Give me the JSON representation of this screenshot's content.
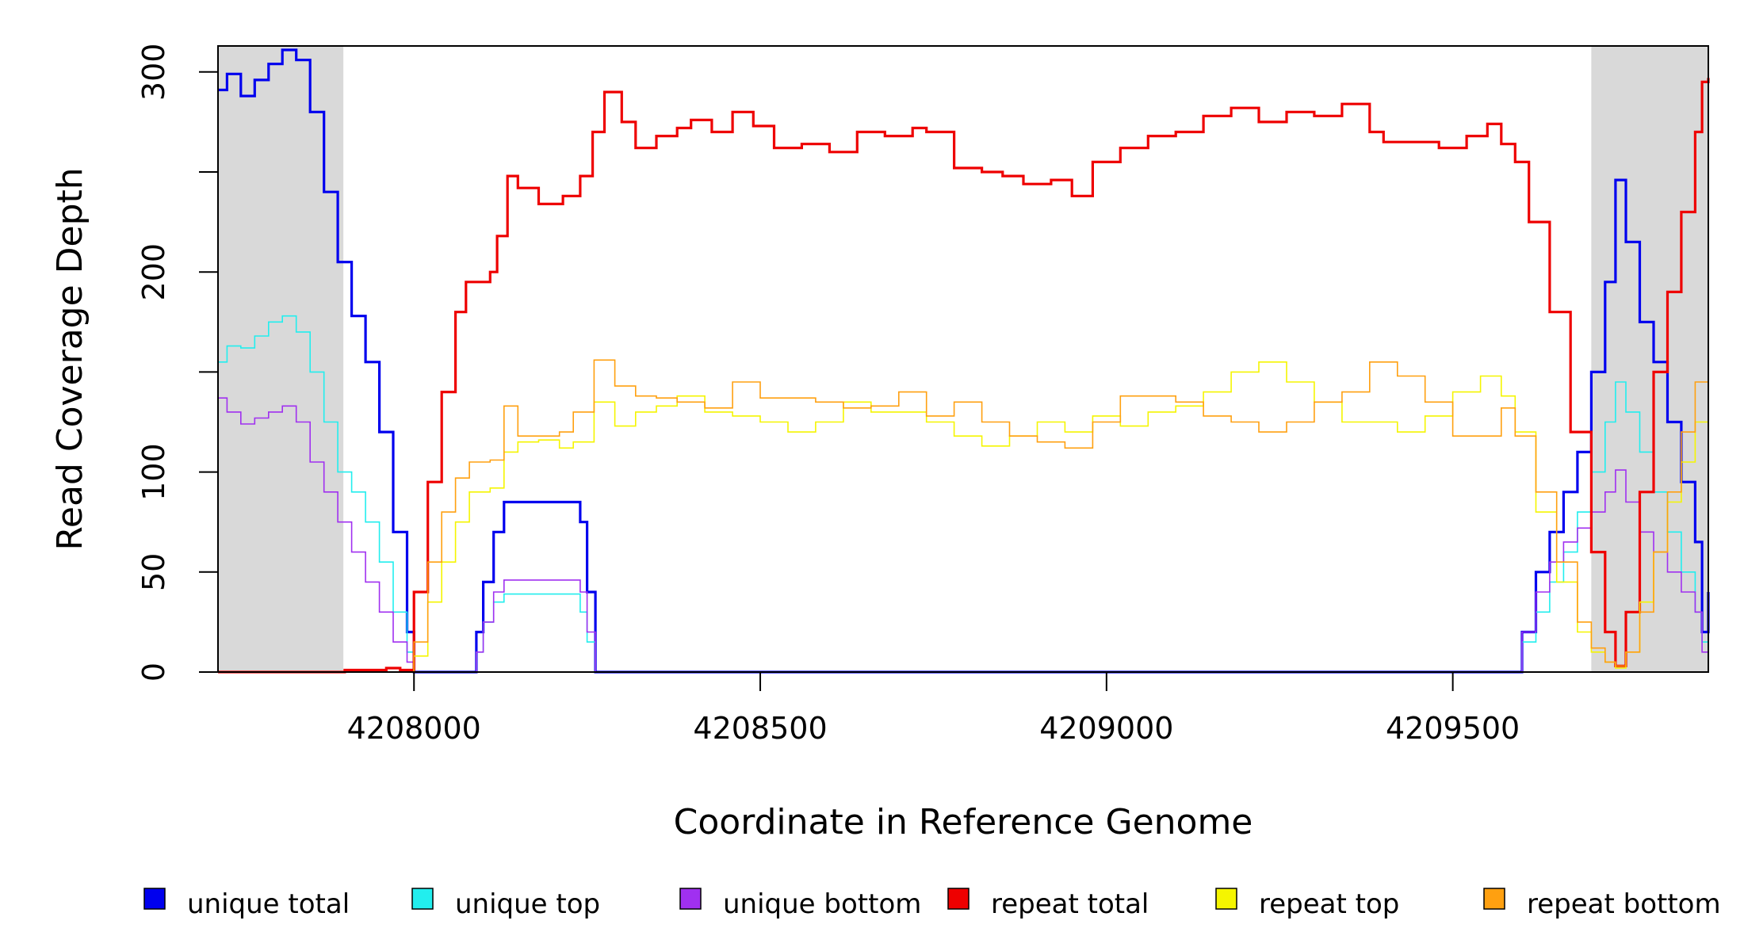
{
  "chart_data": {
    "type": "line",
    "title": "",
    "xlabel": "Coordinate in Reference Genome",
    "ylabel": "Read Coverage Depth",
    "xlim": [
      4207717,
      4209869
    ],
    "ylim": [
      0,
      313
    ],
    "x_ticks": [
      {
        "value": 4208000,
        "label": "4208000"
      },
      {
        "value": 4208500,
        "label": "4208500"
      },
      {
        "value": 4209000,
        "label": "4209000"
      },
      {
        "value": 4209500,
        "label": "4209500"
      }
    ],
    "y_ticks": [
      {
        "value": 0,
        "label": "0"
      },
      {
        "value": 50,
        "label": "50"
      },
      {
        "value": 100,
        "label": "100"
      },
      {
        "value": 150,
        "label": ""
      },
      {
        "value": 200,
        "label": "200"
      },
      {
        "value": 250,
        "label": ""
      },
      {
        "value": 300,
        "label": "300"
      }
    ],
    "grid": false,
    "legend_position": "bottom",
    "shaded_regions": [
      {
        "x": [
          4207717,
          4207898
        ],
        "color": "#d9d9d9"
      },
      {
        "x": [
          4209700,
          4209869
        ],
        "color": "#d9d9d9"
      }
    ],
    "series": [
      {
        "name": "unique total",
        "color": "#0000ee",
        "width": 3.2,
        "x": [
          4207717,
          4207730,
          4207750,
          4207770,
          4207790,
          4207810,
          4207830,
          4207850,
          4207870,
          4207890,
          4207910,
          4207930,
          4207950,
          4207970,
          4207990,
          4208000,
          4208080,
          4208090,
          4208100,
          4208115,
          4208130,
          4208160,
          4208200,
          4208230,
          4208240,
          4208250,
          4208262,
          4208280,
          4208500,
          4209000,
          4209500,
          4209590,
          4209600,
          4209620,
          4209640,
          4209660,
          4209680,
          4209700,
          4209720,
          4209735,
          4209750,
          4209770,
          4209790,
          4209810,
          4209830,
          4209850,
          4209860,
          4209869
        ],
        "y": [
          291,
          299,
          288,
          296,
          304,
          311,
          306,
          280,
          240,
          205,
          178,
          155,
          120,
          70,
          20,
          0,
          0,
          20,
          45,
          70,
          85,
          85,
          85,
          85,
          75,
          40,
          0,
          0,
          0,
          0,
          0,
          0,
          20,
          50,
          70,
          90,
          110,
          150,
          195,
          246,
          215,
          175,
          155,
          125,
          95,
          65,
          20,
          40
        ]
      },
      {
        "name": "unique top",
        "color": "#22eeee",
        "width": 1.6,
        "x": [
          4207717,
          4207730,
          4207750,
          4207770,
          4207790,
          4207810,
          4207830,
          4207850,
          4207870,
          4207890,
          4207910,
          4207930,
          4207950,
          4207970,
          4207990,
          4208000,
          4208080,
          4208090,
          4208100,
          4208115,
          4208130,
          4208160,
          4208200,
          4208230,
          4208240,
          4208250,
          4208262,
          4208280,
          4208500,
          4209000,
          4209500,
          4209590,
          4209600,
          4209620,
          4209640,
          4209660,
          4209680,
          4209700,
          4209720,
          4209735,
          4209750,
          4209770,
          4209790,
          4209810,
          4209830,
          4209850,
          4209860,
          4209869
        ],
        "y": [
          155,
          163,
          162,
          168,
          175,
          178,
          170,
          150,
          125,
          100,
          90,
          75,
          55,
          30,
          10,
          0,
          0,
          10,
          25,
          35,
          39,
          39,
          39,
          39,
          30,
          15,
          0,
          0,
          0,
          0,
          0,
          0,
          15,
          30,
          45,
          60,
          80,
          100,
          125,
          145,
          130,
          110,
          90,
          70,
          50,
          30,
          15,
          30
        ]
      },
      {
        "name": "unique bottom",
        "color": "#a030f0",
        "width": 1.6,
        "x": [
          4207717,
          4207730,
          4207750,
          4207770,
          4207790,
          4207810,
          4207830,
          4207850,
          4207870,
          4207890,
          4207910,
          4207930,
          4207950,
          4207970,
          4207990,
          4208000,
          4208080,
          4208090,
          4208100,
          4208115,
          4208130,
          4208160,
          4208200,
          4208230,
          4208240,
          4208250,
          4208262,
          4208280,
          4208500,
          4209000,
          4209500,
          4209590,
          4209600,
          4209620,
          4209640,
          4209660,
          4209680,
          4209700,
          4209720,
          4209735,
          4209750,
          4209770,
          4209790,
          4209810,
          4209830,
          4209850,
          4209860,
          4209869
        ],
        "y": [
          137,
          130,
          124,
          127,
          130,
          133,
          125,
          105,
          90,
          75,
          60,
          45,
          30,
          15,
          5,
          0,
          0,
          10,
          25,
          40,
          46,
          46,
          46,
          46,
          40,
          20,
          0,
          0,
          0,
          0,
          0,
          0,
          20,
          40,
          55,
          65,
          72,
          80,
          90,
          101,
          85,
          70,
          60,
          50,
          40,
          30,
          10,
          20
        ]
      },
      {
        "name": "repeat total",
        "color": "#ee0000",
        "width": 3.2,
        "x": [
          4207717,
          4207850,
          4207900,
          4207960,
          4207980,
          4208000,
          4208020,
          4208040,
          4208060,
          4208075,
          4208110,
          4208120,
          4208135,
          4208150,
          4208180,
          4208215,
          4208240,
          4208258,
          4208275,
          4208300,
          4208320,
          4208350,
          4208380,
          4208400,
          4208430,
          4208460,
          4208490,
          4208520,
          4208560,
          4208600,
          4208640,
          4208680,
          4208720,
          4208740,
          4208780,
          4208820,
          4208850,
          4208880,
          4208920,
          4208950,
          4208980,
          4209020,
          4209060,
          4209100,
          4209140,
          4209180,
          4209220,
          4209260,
          4209300,
          4209340,
          4209380,
          4209400,
          4209440,
          4209480,
          4209520,
          4209550,
          4209570,
          4209590,
          4209610,
          4209640,
          4209670,
          4209700,
          4209720,
          4209735,
          4209750,
          4209770,
          4209790,
          4209810,
          4209830,
          4209850,
          4209860,
          4209869
        ],
        "y": [
          0,
          0,
          1,
          2,
          1,
          40,
          95,
          140,
          180,
          195,
          200,
          218,
          248,
          242,
          234,
          238,
          248,
          270,
          290,
          275,
          262,
          268,
          272,
          276,
          270,
          280,
          273,
          262,
          264,
          260,
          270,
          268,
          272,
          270,
          252,
          250,
          248,
          244,
          246,
          238,
          255,
          262,
          268,
          270,
          278,
          282,
          275,
          280,
          278,
          284,
          270,
          265,
          265,
          262,
          268,
          274,
          264,
          255,
          225,
          180,
          120,
          60,
          20,
          3,
          30,
          90,
          150,
          190,
          230,
          270,
          295,
          297
        ]
      },
      {
        "name": "repeat top",
        "color": "#f5f500",
        "width": 1.6,
        "x": [
          4207717,
          4207990,
          4208000,
          4208020,
          4208040,
          4208060,
          4208080,
          4208110,
          4208130,
          4208150,
          4208180,
          4208210,
          4208230,
          4208260,
          4208290,
          4208320,
          4208350,
          4208380,
          4208420,
          4208460,
          4208500,
          4208540,
          4208580,
          4208620,
          4208660,
          4208700,
          4208740,
          4208780,
          4208820,
          4208860,
          4208900,
          4208940,
          4208980,
          4209020,
          4209060,
          4209100,
          4209140,
          4209180,
          4209220,
          4209260,
          4209300,
          4209340,
          4209380,
          4209420,
          4209460,
          4209500,
          4209540,
          4209570,
          4209590,
          4209620,
          4209650,
          4209680,
          4209700,
          4209720,
          4209735,
          4209750,
          4209770,
          4209790,
          4209810,
          4209830,
          4209850,
          4209869
        ],
        "y": [
          0,
          0,
          8,
          35,
          55,
          75,
          90,
          92,
          110,
          115,
          116,
          112,
          115,
          135,
          123,
          130,
          133,
          138,
          130,
          128,
          125,
          120,
          125,
          135,
          130,
          130,
          125,
          118,
          113,
          118,
          125,
          120,
          128,
          123,
          130,
          133,
          140,
          150,
          155,
          145,
          135,
          125,
          125,
          120,
          128,
          140,
          148,
          138,
          120,
          80,
          45,
          20,
          10,
          5,
          2,
          10,
          35,
          60,
          85,
          105,
          125,
          133
        ]
      },
      {
        "name": "repeat bottom",
        "color": "#ffa010",
        "width": 1.6,
        "x": [
          4207717,
          4207990,
          4208000,
          4208020,
          4208040,
          4208060,
          4208080,
          4208110,
          4208130,
          4208150,
          4208180,
          4208210,
          4208230,
          4208260,
          4208290,
          4208320,
          4208350,
          4208380,
          4208420,
          4208460,
          4208500,
          4208540,
          4208580,
          4208620,
          4208660,
          4208700,
          4208740,
          4208780,
          4208820,
          4208860,
          4208900,
          4208940,
          4208980,
          4209020,
          4209060,
          4209100,
          4209140,
          4209180,
          4209220,
          4209260,
          4209300,
          4209340,
          4209380,
          4209420,
          4209460,
          4209500,
          4209540,
          4209570,
          4209590,
          4209620,
          4209650,
          4209680,
          4209700,
          4209720,
          4209735,
          4209750,
          4209770,
          4209790,
          4209810,
          4209830,
          4209850,
          4209869
        ],
        "y": [
          0,
          0,
          15,
          55,
          80,
          97,
          105,
          106,
          133,
          118,
          118,
          120,
          130,
          156,
          143,
          138,
          137,
          135,
          132,
          145,
          137,
          137,
          135,
          132,
          133,
          140,
          128,
          135,
          125,
          118,
          115,
          112,
          125,
          138,
          138,
          135,
          128,
          125,
          120,
          125,
          135,
          140,
          155,
          148,
          135,
          118,
          118,
          132,
          118,
          90,
          55,
          25,
          12,
          5,
          3,
          10,
          30,
          60,
          90,
          120,
          145,
          163
        ]
      }
    ],
    "legend": [
      {
        "label": "unique total",
        "color": "#0000ee"
      },
      {
        "label": "unique top",
        "color": "#22eeee"
      },
      {
        "label": "unique bottom",
        "color": "#a030f0"
      },
      {
        "label": "repeat total",
        "color": "#ee0000"
      },
      {
        "label": "repeat top",
        "color": "#f5f500"
      },
      {
        "label": "repeat bottom",
        "color": "#ffa010"
      }
    ]
  }
}
